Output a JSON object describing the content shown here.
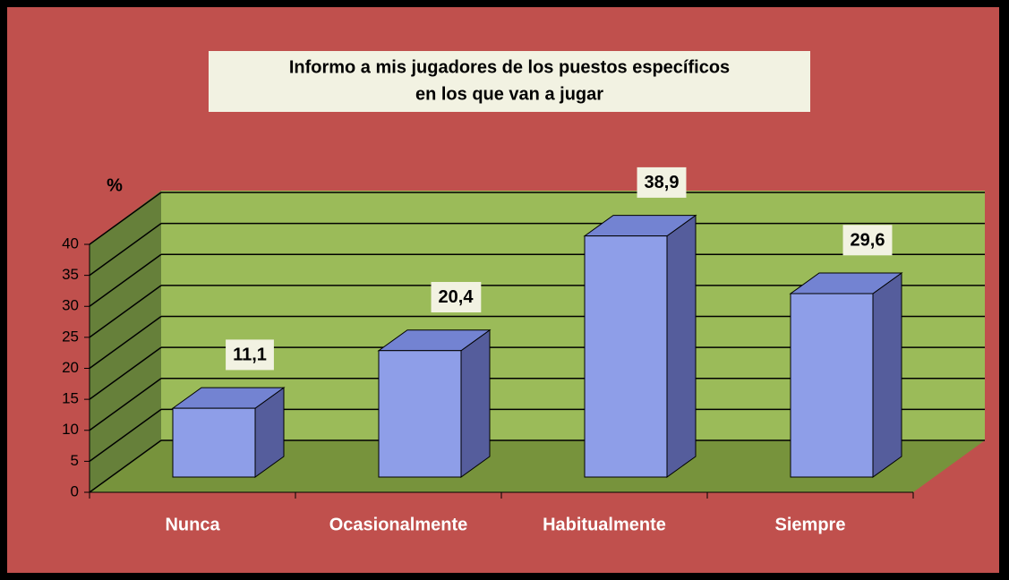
{
  "chart_data": {
    "type": "bar3d",
    "title": [
      "Informo a mis jugadores de los puestos específicos",
      "en los que van a jugar"
    ],
    "y_axis_label": "%",
    "categories": [
      "Nunca",
      "Ocasionalmente",
      "Habitualmente",
      "Siempre"
    ],
    "values": [
      11.1,
      20.4,
      38.9,
      29.6
    ],
    "value_labels": [
      "11,1",
      "20,4",
      "38,9",
      "29,6"
    ],
    "color": "#8e9ee8",
    "ylim": [
      0,
      40
    ],
    "yticks": [
      0,
      5,
      10,
      15,
      20,
      25,
      30,
      35,
      40
    ],
    "grid": true
  }
}
